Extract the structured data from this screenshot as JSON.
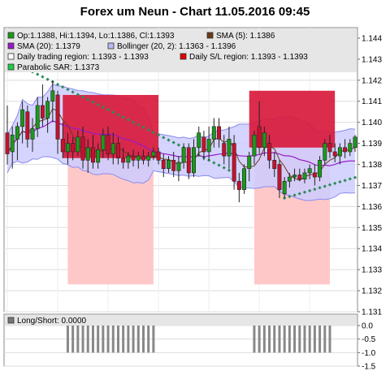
{
  "title": "Forex um Neun - Chart 11.05.2016 09:45",
  "legend": {
    "ohlc": "Op:1.1388, Hi:1.1394, Lo:1.1386, Cl:1.1393",
    "sma5": "SMA (5): 1.1386",
    "sma20": "SMA (20): 1.1379",
    "bollinger": "Bollinger (20, 2): 1.1363 - 1.1396",
    "daily_trading": "Daily trading region: 1.1393 - 1.1393",
    "daily_sl": "Daily S/L region: 1.1393 - 1.1393",
    "sar": "Parabolic SAR: 1.1373",
    "longshort": "Long/Short: 0.0000"
  },
  "colors": {
    "up": "#1a9a1a",
    "down": "#c8102e",
    "sma5": "#6b3a16",
    "sma20": "#9a19c8",
    "bollinger_fill": "#ccccff",
    "bollinger_line": "#8a8aee",
    "trading_region": "#d81a3c",
    "sl_region": "#ffc8c8",
    "sar": "#2e8b57",
    "legend_bg": "#e6e6e6"
  },
  "chart_data": [
    {
      "type": "candlestick",
      "ylim": [
        1.131,
        1.1445
      ],
      "yticks": [
        "1.144",
        "1.143",
        "1.142",
        "1.141",
        "1.140",
        "1.139",
        "1.138",
        "1.137",
        "1.136",
        "1.135",
        "1.134",
        "1.133",
        "1.132",
        "1.131"
      ],
      "candles": [
        {
          "o": 1.1395,
          "h": 1.1408,
          "l": 1.138,
          "c": 1.1385
        },
        {
          "o": 1.1386,
          "h": 1.1398,
          "l": 1.1378,
          "c": 1.1394
        },
        {
          "o": 1.1392,
          "h": 1.14,
          "l": 1.1382,
          "c": 1.1398
        },
        {
          "o": 1.1398,
          "h": 1.141,
          "l": 1.139,
          "c": 1.1406
        },
        {
          "o": 1.1405,
          "h": 1.1408,
          "l": 1.1388,
          "c": 1.1392
        },
        {
          "o": 1.1392,
          "h": 1.1402,
          "l": 1.1386,
          "c": 1.1397
        },
        {
          "o": 1.1397,
          "h": 1.1412,
          "l": 1.1393,
          "c": 1.1408
        },
        {
          "o": 1.1408,
          "h": 1.1418,
          "l": 1.1398,
          "c": 1.1402
        },
        {
          "o": 1.1402,
          "h": 1.1412,
          "l": 1.1395,
          "c": 1.141
        },
        {
          "o": 1.141,
          "h": 1.142,
          "l": 1.14,
          "c": 1.1415
        },
        {
          "o": 1.1413,
          "h": 1.1415,
          "l": 1.1385,
          "c": 1.1392
        },
        {
          "o": 1.1392,
          "h": 1.14,
          "l": 1.1383,
          "c": 1.1386
        },
        {
          "o": 1.1386,
          "h": 1.1395,
          "l": 1.138,
          "c": 1.139
        },
        {
          "o": 1.139,
          "h": 1.1393,
          "l": 1.1382,
          "c": 1.1386
        },
        {
          "o": 1.1386,
          "h": 1.1396,
          "l": 1.1384,
          "c": 1.1393
        },
        {
          "o": 1.1393,
          "h": 1.1398,
          "l": 1.1378,
          "c": 1.1382
        },
        {
          "o": 1.1382,
          "h": 1.1392,
          "l": 1.1376,
          "c": 1.1388
        },
        {
          "o": 1.1388,
          "h": 1.1394,
          "l": 1.1378,
          "c": 1.1381
        },
        {
          "o": 1.1381,
          "h": 1.139,
          "l": 1.1378,
          "c": 1.1387
        },
        {
          "o": 1.1387,
          "h": 1.1397,
          "l": 1.1383,
          "c": 1.1394
        },
        {
          "o": 1.1394,
          "h": 1.1398,
          "l": 1.1382,
          "c": 1.1385
        },
        {
          "o": 1.1385,
          "h": 1.1395,
          "l": 1.138,
          "c": 1.139
        },
        {
          "o": 1.139,
          "h": 1.1393,
          "l": 1.138,
          "c": 1.1383
        },
        {
          "o": 1.1383,
          "h": 1.1388,
          "l": 1.1378,
          "c": 1.1381
        },
        {
          "o": 1.1381,
          "h": 1.1386,
          "l": 1.1378,
          "c": 1.1384
        },
        {
          "o": 1.1384,
          "h": 1.1387,
          "l": 1.1379,
          "c": 1.1382
        },
        {
          "o": 1.1382,
          "h": 1.1386,
          "l": 1.1378,
          "c": 1.1384
        },
        {
          "o": 1.1384,
          "h": 1.1387,
          "l": 1.138,
          "c": 1.1382
        },
        {
          "o": 1.1382,
          "h": 1.1386,
          "l": 1.1379,
          "c": 1.1384
        },
        {
          "o": 1.1384,
          "h": 1.1388,
          "l": 1.1382,
          "c": 1.1386
        },
        {
          "o": 1.1386,
          "h": 1.1388,
          "l": 1.138,
          "c": 1.1382
        },
        {
          "o": 1.1382,
          "h": 1.1385,
          "l": 1.1374,
          "c": 1.1378
        },
        {
          "o": 1.1378,
          "h": 1.1384,
          "l": 1.1376,
          "c": 1.1382
        },
        {
          "o": 1.1382,
          "h": 1.1386,
          "l": 1.1374,
          "c": 1.1377
        },
        {
          "o": 1.1377,
          "h": 1.1384,
          "l": 1.1372,
          "c": 1.1381
        },
        {
          "o": 1.1381,
          "h": 1.139,
          "l": 1.1378,
          "c": 1.1388
        },
        {
          "o": 1.1388,
          "h": 1.139,
          "l": 1.1373,
          "c": 1.1376
        },
        {
          "o": 1.1376,
          "h": 1.1392,
          "l": 1.1374,
          "c": 1.1388
        },
        {
          "o": 1.1388,
          "h": 1.1398,
          "l": 1.1384,
          "c": 1.1395
        },
        {
          "o": 1.1393,
          "h": 1.1396,
          "l": 1.1382,
          "c": 1.1386
        },
        {
          "o": 1.1386,
          "h": 1.1398,
          "l": 1.1382,
          "c": 1.1392
        },
        {
          "o": 1.1392,
          "h": 1.1402,
          "l": 1.1388,
          "c": 1.1398
        },
        {
          "o": 1.1398,
          "h": 1.1402,
          "l": 1.1388,
          "c": 1.1392
        },
        {
          "o": 1.139,
          "h": 1.1394,
          "l": 1.138,
          "c": 1.1384
        },
        {
          "o": 1.1384,
          "h": 1.1398,
          "l": 1.1378,
          "c": 1.1392
        },
        {
          "o": 1.139,
          "h": 1.1394,
          "l": 1.1368,
          "c": 1.1372
        },
        {
          "o": 1.1372,
          "h": 1.1376,
          "l": 1.1362,
          "c": 1.1368
        },
        {
          "o": 1.1368,
          "h": 1.138,
          "l": 1.1366,
          "c": 1.1378
        },
        {
          "o": 1.1378,
          "h": 1.1386,
          "l": 1.1372,
          "c": 1.1384
        },
        {
          "o": 1.1384,
          "h": 1.1396,
          "l": 1.138,
          "c": 1.1394
        },
        {
          "o": 1.1398,
          "h": 1.141,
          "l": 1.1385,
          "c": 1.1388
        },
        {
          "o": 1.1388,
          "h": 1.1398,
          "l": 1.1384,
          "c": 1.1395
        },
        {
          "o": 1.139,
          "h": 1.1394,
          "l": 1.1378,
          "c": 1.1382
        },
        {
          "o": 1.1382,
          "h": 1.1386,
          "l": 1.1374,
          "c": 1.1378
        },
        {
          "o": 1.138,
          "h": 1.1382,
          "l": 1.1364,
          "c": 1.1368
        },
        {
          "o": 1.1366,
          "h": 1.1374,
          "l": 1.1364,
          "c": 1.1372
        },
        {
          "o": 1.1372,
          "h": 1.1376,
          "l": 1.1369,
          "c": 1.1374
        },
        {
          "o": 1.1374,
          "h": 1.1378,
          "l": 1.1372,
          "c": 1.1375
        },
        {
          "o": 1.1375,
          "h": 1.1378,
          "l": 1.1372,
          "c": 1.1373
        },
        {
          "o": 1.1373,
          "h": 1.1378,
          "l": 1.1371,
          "c": 1.1376
        },
        {
          "o": 1.1376,
          "h": 1.138,
          "l": 1.1373,
          "c": 1.1378
        },
        {
          "o": 1.1376,
          "h": 1.138,
          "l": 1.137,
          "c": 1.1374
        },
        {
          "o": 1.1374,
          "h": 1.1384,
          "l": 1.1372,
          "c": 1.1382
        },
        {
          "o": 1.1382,
          "h": 1.1392,
          "l": 1.138,
          "c": 1.139
        },
        {
          "o": 1.139,
          "h": 1.1394,
          "l": 1.1383,
          "c": 1.1386
        },
        {
          "o": 1.1386,
          "h": 1.139,
          "l": 1.1381,
          "c": 1.1384
        },
        {
          "o": 1.1384,
          "h": 1.139,
          "l": 1.138,
          "c": 1.1388
        },
        {
          "o": 1.1388,
          "h": 1.1392,
          "l": 1.1383,
          "c": 1.1386
        },
        {
          "o": 1.1386,
          "h": 1.1392,
          "l": 1.1384,
          "c": 1.139
        },
        {
          "o": 1.1388,
          "h": 1.1394,
          "l": 1.1386,
          "c": 1.1393
        }
      ],
      "trading_regions": [
        {
          "from": 11,
          "to": 30,
          "low": 1.1383,
          "high": 1.1413
        },
        {
          "from": 48,
          "to": 65,
          "low": 1.1388,
          "high": 1.1415
        }
      ],
      "sl_regions": [
        {
          "from": 12,
          "to": 29,
          "low": 1.1323,
          "high": 1.1395
        },
        {
          "from": 49,
          "to": 64,
          "low": 1.1323,
          "high": 1.1395
        }
      ]
    },
    {
      "type": "bar",
      "title": "Long/Short: 0.0000",
      "ylim": [
        -1.5,
        0.0
      ],
      "yticks": [
        "0.0",
        "-0.5",
        "-1.0",
        "-1.5"
      ],
      "bars": [
        {
          "from": 12,
          "to": 29,
          "value": -1.0
        },
        {
          "from": 49,
          "to": 64,
          "value": -1.0
        }
      ]
    }
  ]
}
